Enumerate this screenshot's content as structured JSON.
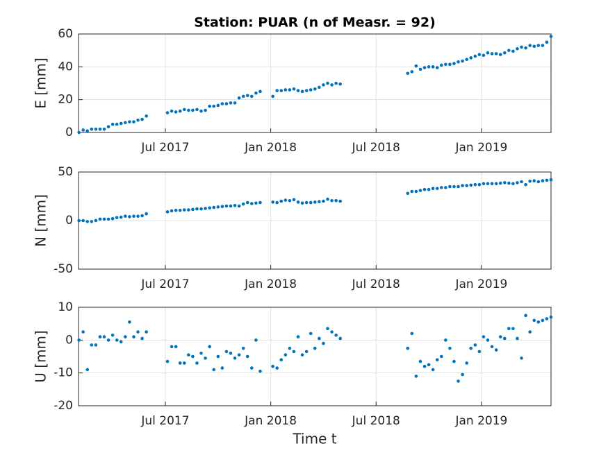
{
  "chart_data": [
    {
      "type": "scatter",
      "title": "Station: PUAR (n of Measr. = 92)",
      "y_label": "E [mm]",
      "color": "#0072bd",
      "grid": true,
      "xlim": [
        2017.088,
        2019.33
      ],
      "xticks": [
        {
          "value": 2017.5,
          "label": "Jul 2017"
        },
        {
          "value": 2018.0,
          "label": "Jan 2018"
        },
        {
          "value": 2018.5,
          "label": "Jul 2018"
        },
        {
          "value": 2019.0,
          "label": "Jan 2019"
        }
      ],
      "ylim": [
        0,
        60
      ],
      "yticks": [
        0,
        20,
        40,
        60
      ],
      "x": [
        2017.09,
        2017.11,
        2017.13,
        2017.15,
        2017.17,
        2017.19,
        2017.21,
        2017.23,
        2017.25,
        2017.27,
        2017.29,
        2017.31,
        2017.33,
        2017.35,
        2017.37,
        2017.39,
        2017.41,
        2017.51,
        2017.53,
        2017.55,
        2017.57,
        2017.59,
        2017.61,
        2017.63,
        2017.65,
        2017.67,
        2017.69,
        2017.71,
        2017.73,
        2017.75,
        2017.77,
        2017.79,
        2017.81,
        2017.83,
        2017.85,
        2017.87,
        2017.89,
        2017.91,
        2017.93,
        2017.95,
        2018.01,
        2018.03,
        2018.05,
        2018.07,
        2018.09,
        2018.11,
        2018.13,
        2018.15,
        2018.17,
        2018.19,
        2018.21,
        2018.23,
        2018.25,
        2018.27,
        2018.29,
        2018.31,
        2018.33,
        2018.65,
        2018.67,
        2018.69,
        2018.71,
        2018.73,
        2018.75,
        2018.77,
        2018.79,
        2018.81,
        2018.83,
        2018.85,
        2018.87,
        2018.89,
        2018.91,
        2018.93,
        2018.95,
        2018.97,
        2018.99,
        2019.01,
        2019.03,
        2019.05,
        2019.07,
        2019.09,
        2019.11,
        2019.13,
        2019.15,
        2019.17,
        2019.19,
        2019.21,
        2019.23,
        2019.25,
        2019.27,
        2019.29,
        2019.31,
        2019.33
      ],
      "values": [
        0,
        1.5,
        1,
        2,
        2,
        2,
        2,
        3.5,
        5,
        5,
        5.5,
        6,
        6.5,
        6.5,
        7.5,
        8,
        10,
        12,
        13,
        12.5,
        13,
        14,
        13.5,
        13.5,
        14,
        13,
        13.5,
        16,
        16,
        16.5,
        17.5,
        17.5,
        18,
        18,
        21,
        22,
        22.5,
        22,
        24,
        25,
        22,
        25.5,
        25.5,
        26,
        26,
        26.5,
        25.5,
        25,
        25.5,
        26,
        26.5,
        27.5,
        29,
        30,
        29,
        30,
        29.5,
        36,
        37,
        40.5,
        38.5,
        39.5,
        40,
        40,
        39.5,
        41,
        41.5,
        41.5,
        42,
        43,
        43.5,
        44.5,
        45.5,
        46.5,
        47.5,
        47,
        48.5,
        48,
        48,
        47.5,
        48.5,
        50,
        49.5,
        51,
        52,
        51.5,
        53,
        52.5,
        53,
        53,
        55,
        58.5
      ]
    },
    {
      "type": "scatter",
      "y_label": "N [mm]",
      "color": "#0072bd",
      "grid": true,
      "xlim": [
        2017.088,
        2019.33
      ],
      "xticks": [
        {
          "value": 2017.5,
          "label": "Jul 2017"
        },
        {
          "value": 2018.0,
          "label": "Jan 2018"
        },
        {
          "value": 2018.5,
          "label": "Jul 2018"
        },
        {
          "value": 2019.0,
          "label": "Jan 2019"
        }
      ],
      "ylim": [
        -50,
        50
      ],
      "yticks": [
        -50,
        0,
        50
      ],
      "x": [
        2017.09,
        2017.11,
        2017.13,
        2017.15,
        2017.17,
        2017.19,
        2017.21,
        2017.23,
        2017.25,
        2017.27,
        2017.29,
        2017.31,
        2017.33,
        2017.35,
        2017.37,
        2017.39,
        2017.41,
        2017.51,
        2017.53,
        2017.55,
        2017.57,
        2017.59,
        2017.61,
        2017.63,
        2017.65,
        2017.67,
        2017.69,
        2017.71,
        2017.73,
        2017.75,
        2017.77,
        2017.79,
        2017.81,
        2017.83,
        2017.85,
        2017.87,
        2017.89,
        2017.91,
        2017.93,
        2017.95,
        2018.01,
        2018.03,
        2018.05,
        2018.07,
        2018.09,
        2018.11,
        2018.13,
        2018.15,
        2018.17,
        2018.19,
        2018.21,
        2018.23,
        2018.25,
        2018.27,
        2018.29,
        2018.31,
        2018.33,
        2018.65,
        2018.67,
        2018.69,
        2018.71,
        2018.73,
        2018.75,
        2018.77,
        2018.79,
        2018.81,
        2018.83,
        2018.85,
        2018.87,
        2018.89,
        2018.91,
        2018.93,
        2018.95,
        2018.97,
        2018.99,
        2019.01,
        2019.03,
        2019.05,
        2019.07,
        2019.09,
        2019.11,
        2019.13,
        2019.15,
        2019.17,
        2019.19,
        2019.21,
        2019.23,
        2019.25,
        2019.27,
        2019.29,
        2019.31,
        2019.33
      ],
      "values": [
        0,
        0,
        -1,
        -1,
        0,
        1.5,
        1.5,
        1.5,
        2,
        3,
        3.5,
        4.5,
        4,
        4.5,
        4.5,
        5,
        7,
        9,
        10,
        10.5,
        10.5,
        11,
        11,
        11.5,
        12,
        12,
        12.5,
        13,
        13.5,
        14,
        14.5,
        15,
        15,
        15.5,
        15,
        17,
        18.5,
        17.5,
        18,
        18.5,
        19,
        18.5,
        20,
        21,
        20.5,
        21.5,
        19,
        18,
        18.5,
        18.5,
        19,
        19.5,
        20,
        22,
        20.5,
        20.5,
        20,
        28,
        30,
        30,
        31,
        32,
        32,
        33,
        33,
        34,
        34,
        35,
        35,
        35,
        36,
        36,
        36.5,
        37,
        37,
        38,
        38,
        38,
        38,
        38.5,
        39,
        38.5,
        38,
        39,
        40,
        37,
        40.5,
        41,
        40,
        41,
        41.5,
        42
      ]
    },
    {
      "type": "scatter",
      "y_label": "U [mm]",
      "x_label": "Time t",
      "color": "#0072bd",
      "grid": true,
      "xlim": [
        2017.088,
        2019.33
      ],
      "xticks": [
        {
          "value": 2017.5,
          "label": "Jul 2017"
        },
        {
          "value": 2018.0,
          "label": "Jan 2018"
        },
        {
          "value": 2018.5,
          "label": "Jul 2018"
        },
        {
          "value": 2019.0,
          "label": "Jan 2019"
        }
      ],
      "ylim": [
        -20,
        10
      ],
      "yticks": [
        -20,
        -10,
        0,
        10
      ],
      "x": [
        2017.09,
        2017.11,
        2017.13,
        2017.15,
        2017.17,
        2017.19,
        2017.21,
        2017.23,
        2017.25,
        2017.27,
        2017.29,
        2017.31,
        2017.33,
        2017.35,
        2017.37,
        2017.39,
        2017.41,
        2017.51,
        2017.53,
        2017.55,
        2017.57,
        2017.59,
        2017.61,
        2017.63,
        2017.65,
        2017.67,
        2017.69,
        2017.71,
        2017.73,
        2017.75,
        2017.77,
        2017.79,
        2017.81,
        2017.83,
        2017.85,
        2017.87,
        2017.89,
        2017.91,
        2017.93,
        2017.95,
        2018.01,
        2018.03,
        2018.05,
        2018.07,
        2018.09,
        2018.11,
        2018.13,
        2018.15,
        2018.17,
        2018.19,
        2018.21,
        2018.23,
        2018.25,
        2018.27,
        2018.29,
        2018.31,
        2018.33,
        2018.65,
        2018.67,
        2018.69,
        2018.71,
        2018.73,
        2018.75,
        2018.77,
        2018.79,
        2018.81,
        2018.83,
        2018.85,
        2018.87,
        2018.89,
        2018.91,
        2018.93,
        2018.95,
        2018.97,
        2018.99,
        2019.01,
        2019.03,
        2019.05,
        2019.07,
        2019.09,
        2019.11,
        2019.13,
        2019.15,
        2019.17,
        2019.19,
        2019.21,
        2019.23,
        2019.25,
        2019.27,
        2019.29,
        2019.31,
        2019.33
      ],
      "values": [
        0,
        2.5,
        -9,
        -1.5,
        -1.5,
        1,
        1,
        0,
        1.5,
        0,
        -0.5,
        1,
        5.5,
        1,
        2.5,
        0.5,
        2.5,
        -6.5,
        -2,
        -2,
        -7,
        -7,
        -4.5,
        -5,
        -7,
        -4,
        -5.5,
        -2,
        -9,
        -5,
        -8.5,
        -3.5,
        -4,
        -5.5,
        -4.5,
        -2.5,
        -5,
        -8.5,
        0,
        -9.5,
        -8,
        -8.5,
        -6,
        -4.5,
        -2.5,
        -3.5,
        1,
        -4.5,
        -3.5,
        2,
        -2.5,
        0.5,
        -1,
        3.5,
        2.5,
        1.5,
        0.5,
        -2.5,
        2,
        -11,
        -6.5,
        -8,
        -7.5,
        -9,
        -6,
        -5,
        0,
        -2.5,
        -6.5,
        -12.5,
        -10.5,
        -7,
        -2.5,
        -1.5,
        -3.5,
        1,
        0,
        -2,
        -3,
        1,
        0.5,
        3.5,
        3.5,
        0.5,
        -5.5,
        7.5,
        2.5,
        6,
        5.5,
        6,
        6.5,
        7
      ]
    }
  ]
}
